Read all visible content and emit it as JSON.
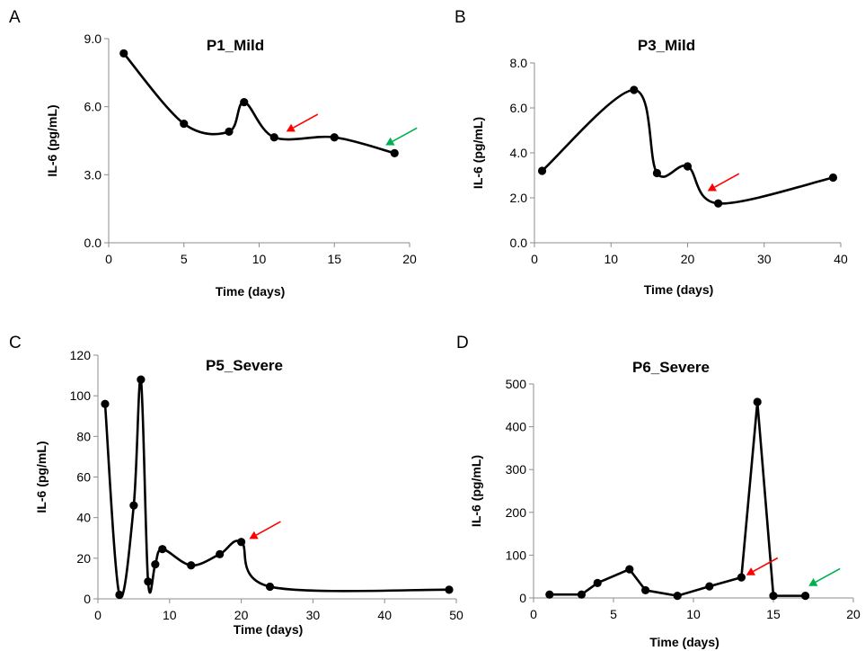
{
  "chart_data": [
    {
      "panel_letter": "A",
      "type": "line",
      "title": "P1_Mild",
      "xlabel": "Time (days)",
      "ylabel": "IL-6 (pg/mL)",
      "xlim": [
        0,
        20
      ],
      "ylim": [
        0,
        9
      ],
      "x_ticks": [
        0,
        5,
        10,
        15,
        20
      ],
      "y_ticks": [
        0,
        3,
        6,
        9
      ],
      "x_tick_labels": [
        "0",
        "5",
        "10",
        "15",
        "20"
      ],
      "y_tick_labels": [
        "0.0",
        "3.0",
        "6.0",
        "9.0"
      ],
      "smooth": true,
      "line_color": "#000000",
      "series": [
        {
          "x": [
            1,
            5,
            8,
            9,
            11,
            15,
            19
          ],
          "y": [
            8.35,
            5.25,
            4.9,
            6.2,
            4.65,
            4.65,
            3.95
          ]
        }
      ],
      "arrows": [
        {
          "color": "#ff0000",
          "x": 11.8,
          "y": 4.9
        },
        {
          "color": "#00b050",
          "x": 18.4,
          "y": 4.3
        }
      ],
      "grid": false,
      "legend": "none"
    },
    {
      "panel_letter": "B",
      "type": "line",
      "title": "P3_Mild",
      "xlabel": "Time (days)",
      "ylabel": "IL-6 (pg/mL)",
      "xlim": [
        0,
        40
      ],
      "ylim": [
        0,
        8
      ],
      "x_ticks": [
        0,
        10,
        20,
        30,
        40
      ],
      "y_ticks": [
        0,
        2,
        4,
        6,
        8
      ],
      "x_tick_labels": [
        "0",
        "10",
        "20",
        "30",
        "40"
      ],
      "y_tick_labels": [
        "0.0",
        "2.0",
        "4.0",
        "6.0",
        "8.0"
      ],
      "smooth": true,
      "line_color": "#000000",
      "series": [
        {
          "x": [
            1,
            13,
            16,
            20,
            24,
            39
          ],
          "y": [
            3.2,
            6.8,
            3.1,
            3.4,
            1.75,
            2.9
          ]
        }
      ],
      "arrows": [
        {
          "color": "#ff0000",
          "x": 22.6,
          "y": 2.3
        }
      ],
      "grid": false,
      "legend": "none"
    },
    {
      "panel_letter": "C",
      "type": "line",
      "title": "P5_Severe",
      "xlabel": "Time (days)",
      "ylabel": "IL-6 (pg/mL)",
      "xlim": [
        0,
        50
      ],
      "ylim": [
        0,
        120
      ],
      "x_ticks": [
        0,
        10,
        20,
        30,
        40,
        50
      ],
      "y_ticks": [
        0,
        20,
        40,
        60,
        80,
        100,
        120
      ],
      "x_tick_labels": [
        "0",
        "10",
        "20",
        "30",
        "40",
        "50"
      ],
      "y_tick_labels": [
        "0",
        "20",
        "40",
        "60",
        "80",
        "100",
        "120"
      ],
      "smooth": true,
      "line_color": "#000000",
      "series": [
        {
          "x": [
            1,
            3,
            5,
            6,
            7,
            8,
            9,
            13,
            17,
            20,
            24,
            49
          ],
          "y": [
            96,
            2,
            46,
            108,
            8.5,
            17,
            24.5,
            16.5,
            22,
            28,
            6,
            4.5
          ]
        }
      ],
      "arrows": [
        {
          "color": "#ff0000",
          "x": 21.1,
          "y": 29.5
        }
      ],
      "grid": false,
      "legend": "none"
    },
    {
      "panel_letter": "D",
      "type": "line",
      "title": "P6_Severe",
      "xlabel": "Time (days)",
      "ylabel": "IL-6 (pg/mL)",
      "xlim": [
        0,
        20
      ],
      "ylim": [
        0,
        500
      ],
      "x_ticks": [
        0,
        5,
        10,
        15,
        20
      ],
      "y_ticks": [
        0,
        100,
        200,
        300,
        400,
        500
      ],
      "x_tick_labels": [
        "0",
        "5",
        "10",
        "15",
        "20"
      ],
      "y_tick_labels": [
        "0",
        "100",
        "200",
        "300",
        "400",
        "500"
      ],
      "smooth": false,
      "line_color": "#000000",
      "series": [
        {
          "x": [
            1,
            3,
            4,
            6,
            7,
            9,
            11,
            13,
            14,
            15,
            17
          ],
          "y": [
            8,
            8,
            35,
            67,
            18,
            5,
            27,
            48,
            458,
            5,
            5
          ]
        }
      ],
      "arrows": [
        {
          "color": "#ff0000",
          "x": 13.3,
          "y": 53
        },
        {
          "color": "#00b050",
          "x": 17.2,
          "y": 28
        }
      ],
      "grid": false,
      "legend": "none"
    }
  ]
}
